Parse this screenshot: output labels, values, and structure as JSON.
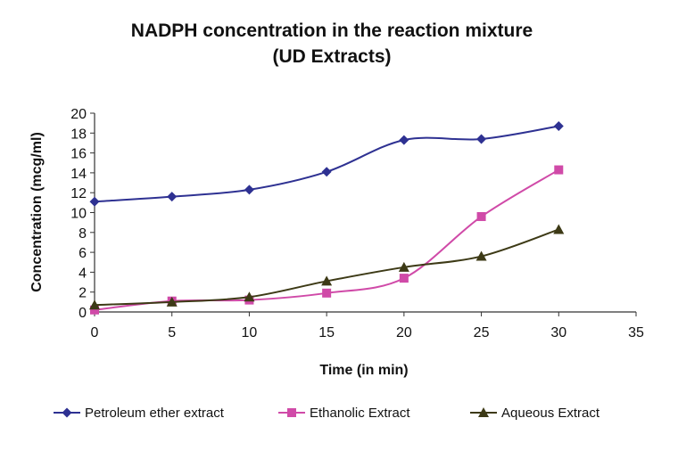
{
  "chart_data": {
    "type": "line",
    "title_line1": "NADPH concentration in the reaction mixture",
    "title_line2": "(UD Extracts)",
    "xlabel": "Time (in min)",
    "ylabel": "Concentration (mcg/ml)",
    "xlim": [
      0,
      35
    ],
    "ylim": [
      0,
      20
    ],
    "x_ticks": [
      0,
      5,
      10,
      15,
      20,
      25,
      30,
      35
    ],
    "y_ticks": [
      0,
      2,
      4,
      6,
      8,
      10,
      12,
      14,
      16,
      18,
      20
    ],
    "grid": false,
    "legend_position": "bottom",
    "x": [
      0,
      5,
      10,
      15,
      20,
      25,
      30
    ],
    "series": [
      {
        "name": "Petroleum ether extract",
        "marker": "diamond",
        "color": "#2e3192",
        "values": [
          11.1,
          11.6,
          12.3,
          14.1,
          17.3,
          17.4,
          18.7
        ]
      },
      {
        "name": "Ethanolic Extract",
        "marker": "square",
        "color": "#d04aa8",
        "values": [
          0.2,
          1.1,
          1.2,
          1.9,
          3.4,
          9.6,
          14.3
        ]
      },
      {
        "name": "Aqueous Extract",
        "marker": "triangle",
        "color": "#3d3a16",
        "values": [
          0.7,
          1.0,
          1.5,
          3.1,
          4.5,
          5.6,
          8.3
        ]
      }
    ]
  }
}
